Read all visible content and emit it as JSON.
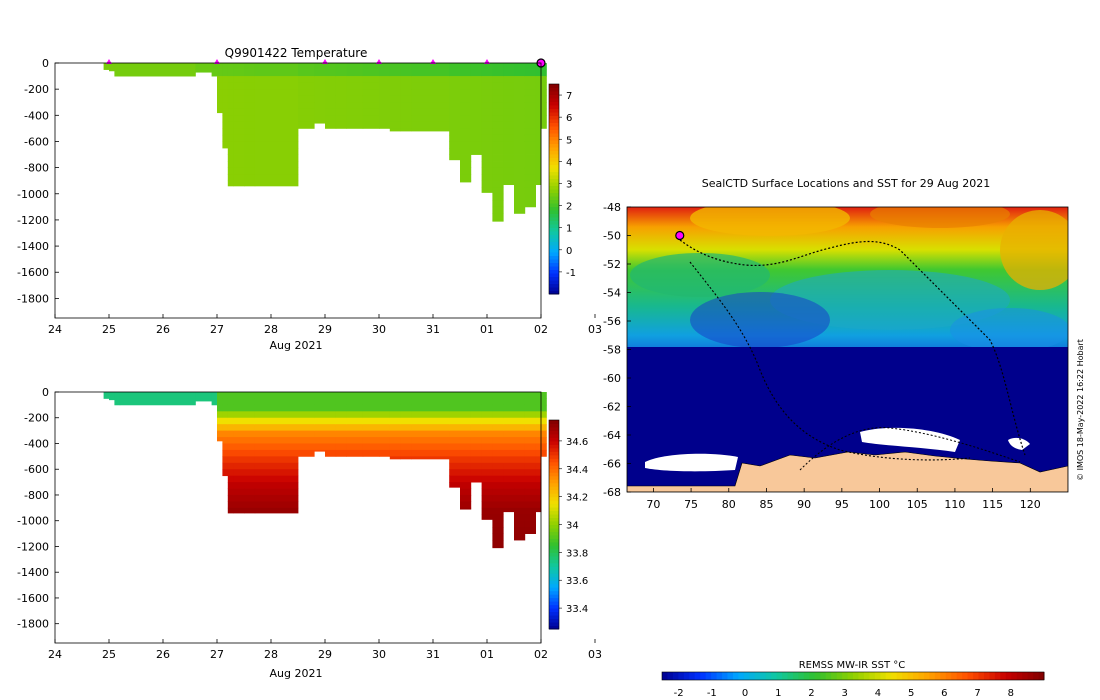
{
  "chart_data": [
    {
      "type": "heatmap",
      "title": "Q9901422  Temperature",
      "xlabel": "Aug 2021",
      "ylabel": "",
      "x_tick_labels": [
        "24",
        "25",
        "26",
        "27",
        "28",
        "29",
        "30",
        "31",
        "01",
        "02",
        "03"
      ],
      "y_tick_labels": [
        "0",
        "-200",
        "-400",
        "-600",
        "-800",
        "-1000",
        "-1200",
        "-1400",
        "-1600",
        "-1800"
      ],
      "colorbar_ticks": [
        "-1",
        "0",
        "1",
        "2",
        "3",
        "4",
        "5",
        "6",
        "7"
      ],
      "colorbar_range": [
        -2,
        7.5
      ],
      "profile_days": [
        24.9,
        25.0,
        25.1,
        25.2,
        26.6,
        26.9,
        27.0,
        27.1,
        27.2,
        27.3,
        27.5,
        27.7,
        28.5,
        28.8,
        29.0,
        29.2,
        29.4,
        29.7,
        30.0,
        30.2,
        30.4,
        30.6,
        31.3,
        31.5,
        31.7,
        31.9,
        32.1,
        32.3,
        32.5,
        32.7,
        32.9,
        33.0
      ],
      "profile_max_depths": [
        50,
        60,
        100,
        100,
        70,
        100,
        380,
        650,
        940,
        940,
        940,
        940,
        500,
        460,
        500,
        500,
        500,
        500,
        500,
        520,
        520,
        520,
        740,
        910,
        700,
        990,
        1210,
        930,
        1150,
        1100,
        930,
        500
      ],
      "surface_marker_days": [
        25,
        27,
        29,
        30,
        31,
        32,
        33
      ],
      "surface_values_deg_c": [
        2.6,
        2.7,
        2.3,
        2.3,
        2.0,
        1.9,
        1.8
      ],
      "deep_values_deg_c": [
        2.8,
        3.0,
        2.8,
        2.7,
        2.6,
        2.5,
        2.5
      ]
    },
    {
      "type": "heatmap",
      "title": "",
      "xlabel": "Aug 2021",
      "x_tick_labels": [
        "24",
        "25",
        "26",
        "27",
        "28",
        "29",
        "30",
        "31",
        "01",
        "02",
        "03"
      ],
      "y_tick_labels": [
        "0",
        "-200",
        "-400",
        "-600",
        "-800",
        "-1000",
        "-1200",
        "-1400",
        "-1600",
        "-1800"
      ],
      "colorbar_ticks": [
        "33.4",
        "33.6",
        "33.8",
        "34",
        "34.2",
        "34.4",
        "34.6"
      ],
      "colorbar_range": [
        33.25,
        34.75
      ],
      "salinity_profile": [
        {
          "depth": 0,
          "value": 33.9
        },
        {
          "depth": 100,
          "value": 33.9
        },
        {
          "depth": 200,
          "value": 34.15
        },
        {
          "depth": 300,
          "value": 34.35
        },
        {
          "depth": 500,
          "value": 34.5
        },
        {
          "depth": 700,
          "value": 34.62
        },
        {
          "depth": 900,
          "value": 34.7
        },
        {
          "depth": 1200,
          "value": 34.72
        }
      ]
    },
    {
      "type": "heatmap",
      "title": "SealCTD Surface Locations and SST for 29 Aug 2021",
      "x_tick_labels": [
        "70",
        "75",
        "80",
        "85",
        "90",
        "95",
        "100",
        "105",
        "110",
        "115",
        "120"
      ],
      "y_tick_labels": [
        "-48",
        "-50",
        "-52",
        "-54",
        "-56",
        "-58",
        "-60",
        "-62",
        "-64",
        "-66",
        "-68"
      ],
      "xlim": [
        66.5,
        125
      ],
      "ylim": [
        -68,
        -48
      ],
      "colorbar_label": "REMSS MW-IR SST °C",
      "colorbar_ticks": [
        "-2",
        "-1",
        "0",
        "1",
        "2",
        "3",
        "4",
        "5",
        "6",
        "7",
        "8"
      ],
      "colorbar_range": [
        -2.5,
        9
      ],
      "current_position": {
        "lon": 73.5,
        "lat": -50.0
      },
      "credit": "© IMOS 18-May-2022 16:22 Hobart"
    }
  ],
  "colors": {
    "marker": "#ff00ff",
    "land": "#f8c89a",
    "ice": "#ffffff",
    "track": "#000000"
  }
}
